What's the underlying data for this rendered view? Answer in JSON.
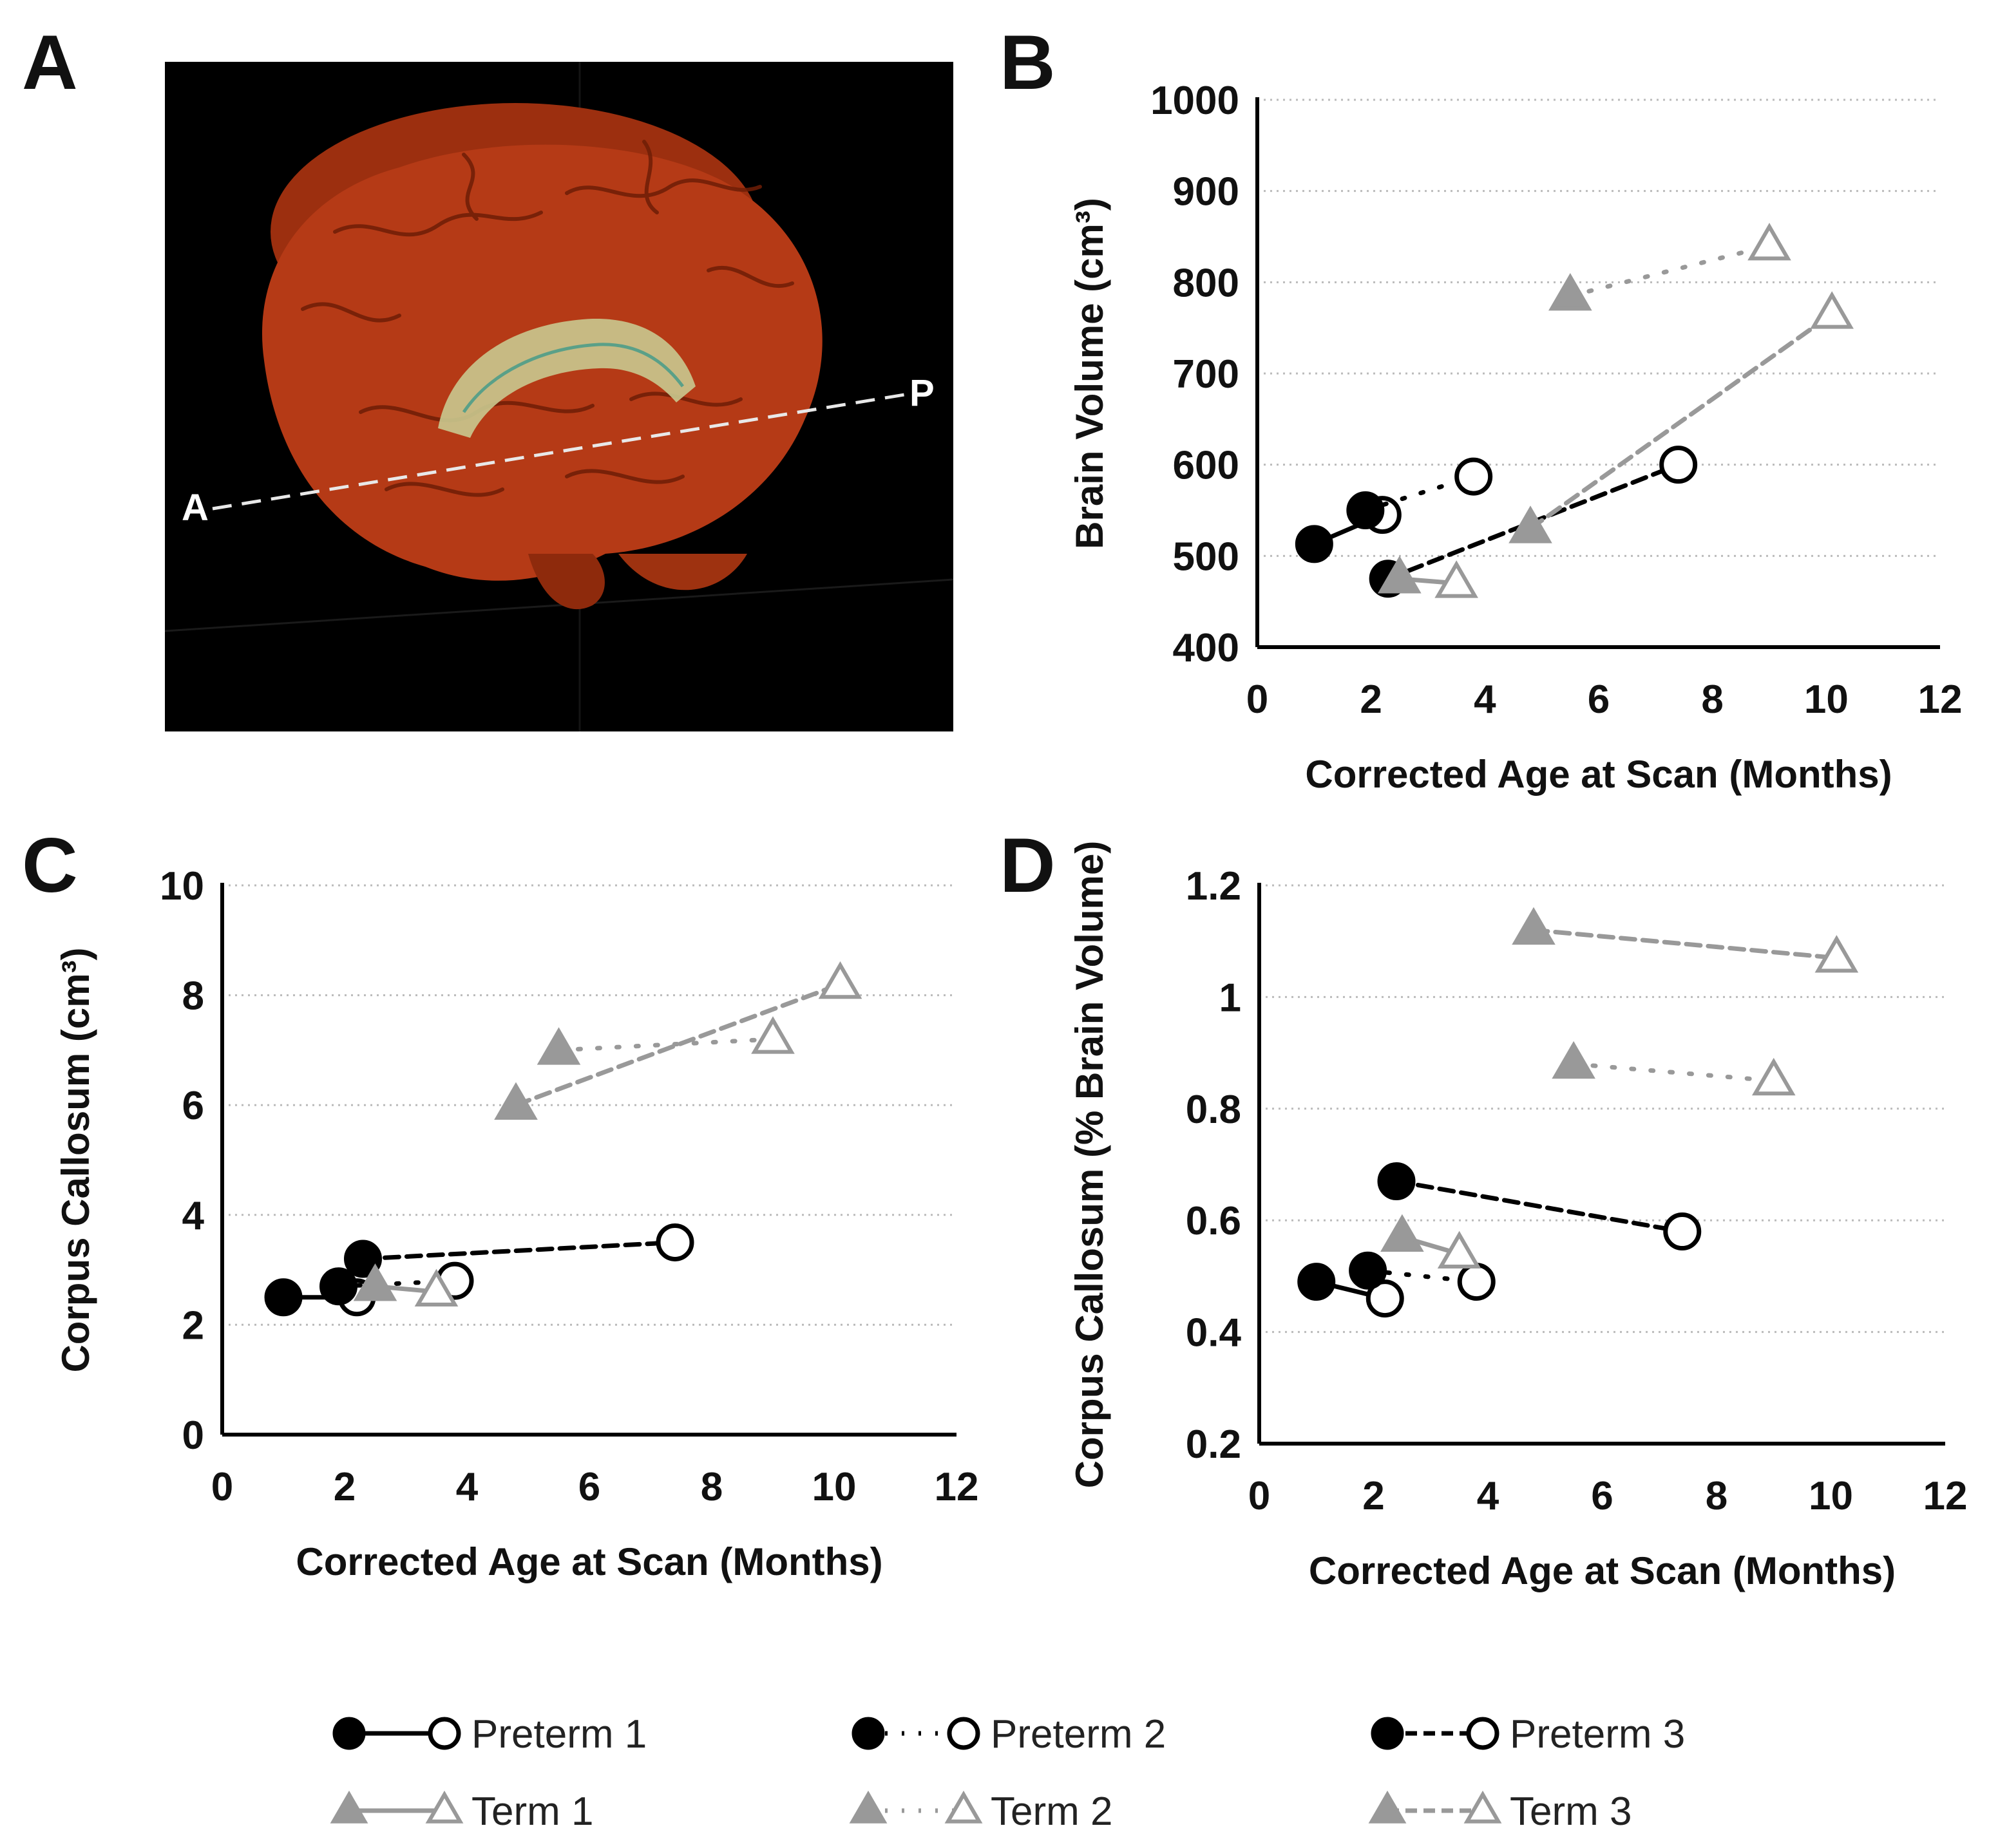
{
  "figure": {
    "panel_labels": [
      "A",
      "B",
      "C",
      "D"
    ],
    "brain_image": {
      "anterior_label": "A",
      "posterior_label": "P",
      "colors": {
        "background": "#000000",
        "brain": "#b53a16",
        "callosum": "#c9c98f"
      }
    },
    "legend": [
      {
        "label": "Preterm 1",
        "key": "preterm1"
      },
      {
        "label": "Preterm 2",
        "key": "preterm2"
      },
      {
        "label": "Preterm 3",
        "key": "preterm3"
      },
      {
        "label": "Term 1",
        "key": "term1"
      },
      {
        "label": "Term 2",
        "key": "term2"
      },
      {
        "label": "Term 3",
        "key": "term3"
      }
    ],
    "colors": {
      "preterm": "#000000",
      "term": "#999999",
      "grid": "#bbbbbb",
      "axis": "#000000"
    }
  },
  "chart_data": [
    {
      "panel": "B",
      "type": "line",
      "xlabel": "Corrected Age at Scan (Months)",
      "ylabel": "Brain Volume (cm³)",
      "xlim": [
        0,
        12
      ],
      "xticks": [
        0,
        2,
        4,
        6,
        8,
        10,
        12
      ],
      "ylim": [
        400,
        1000
      ],
      "yticks": [
        400,
        500,
        600,
        700,
        800,
        900,
        1000
      ],
      "series": [
        {
          "name": "Preterm 1",
          "x": [
            1.0,
            2.2
          ],
          "y": [
            513,
            545
          ]
        },
        {
          "name": "Preterm 2",
          "x": [
            1.9,
            3.8
          ],
          "y": [
            550,
            587
          ]
        },
        {
          "name": "Preterm 3",
          "x": [
            2.3,
            7.4
          ],
          "y": [
            475,
            600
          ]
        },
        {
          "name": "Term 1",
          "x": [
            2.5,
            3.5
          ],
          "y": [
            475,
            470
          ]
        },
        {
          "name": "Term 2",
          "x": [
            5.5,
            9.0
          ],
          "y": [
            785,
            840
          ]
        },
        {
          "name": "Term 3",
          "x": [
            4.8,
            10.1
          ],
          "y": [
            530,
            765
          ]
        }
      ]
    },
    {
      "panel": "C",
      "type": "line",
      "xlabel": "Corrected Age at Scan (Months)",
      "ylabel": "Corpus Callosum (cm³)",
      "xlim": [
        0,
        12
      ],
      "xticks": [
        0,
        2,
        4,
        6,
        8,
        10,
        12
      ],
      "ylim": [
        0,
        10
      ],
      "yticks": [
        0,
        2,
        4,
        6,
        8,
        10
      ],
      "series": [
        {
          "name": "Preterm 1",
          "x": [
            1.0,
            2.2
          ],
          "y": [
            2.5,
            2.5
          ]
        },
        {
          "name": "Preterm 2",
          "x": [
            1.9,
            3.8
          ],
          "y": [
            2.7,
            2.8
          ]
        },
        {
          "name": "Preterm 3",
          "x": [
            2.3,
            7.4
          ],
          "y": [
            3.2,
            3.5
          ]
        },
        {
          "name": "Term 1",
          "x": [
            2.5,
            3.5
          ],
          "y": [
            2.7,
            2.6
          ]
        },
        {
          "name": "Term 2",
          "x": [
            5.5,
            9.0
          ],
          "y": [
            7.0,
            7.2
          ]
        },
        {
          "name": "Term 3",
          "x": [
            4.8,
            10.1
          ],
          "y": [
            6.0,
            8.2
          ]
        }
      ]
    },
    {
      "panel": "D",
      "type": "line",
      "xlabel": "Corrected Age at Scan (Months)",
      "ylabel": "Corpus Callosum (% Brain Volume)",
      "xlim": [
        0,
        12
      ],
      "xticks": [
        0,
        2,
        4,
        6,
        8,
        10,
        12
      ],
      "ylim": [
        0.2,
        1.2
      ],
      "yticks": [
        0.2,
        0.4,
        0.6,
        0.8,
        1,
        1.2
      ],
      "ytick_labels": [
        "0.2",
        "0.4",
        "0.6",
        "0.8",
        "1",
        "1.2"
      ],
      "series": [
        {
          "name": "Preterm 1",
          "x": [
            1.0,
            2.2
          ],
          "y": [
            0.49,
            0.46
          ]
        },
        {
          "name": "Preterm 2",
          "x": [
            1.9,
            3.8
          ],
          "y": [
            0.51,
            0.49
          ]
        },
        {
          "name": "Preterm 3",
          "x": [
            2.4,
            7.4
          ],
          "y": [
            0.67,
            0.58
          ]
        },
        {
          "name": "Term 1",
          "x": [
            2.5,
            3.5
          ],
          "y": [
            0.57,
            0.54
          ]
        },
        {
          "name": "Term 2",
          "x": [
            5.5,
            9.0
          ],
          "y": [
            0.88,
            0.85
          ]
        },
        {
          "name": "Term 3",
          "x": [
            4.8,
            10.1
          ],
          "y": [
            1.12,
            1.07
          ]
        }
      ]
    }
  ]
}
